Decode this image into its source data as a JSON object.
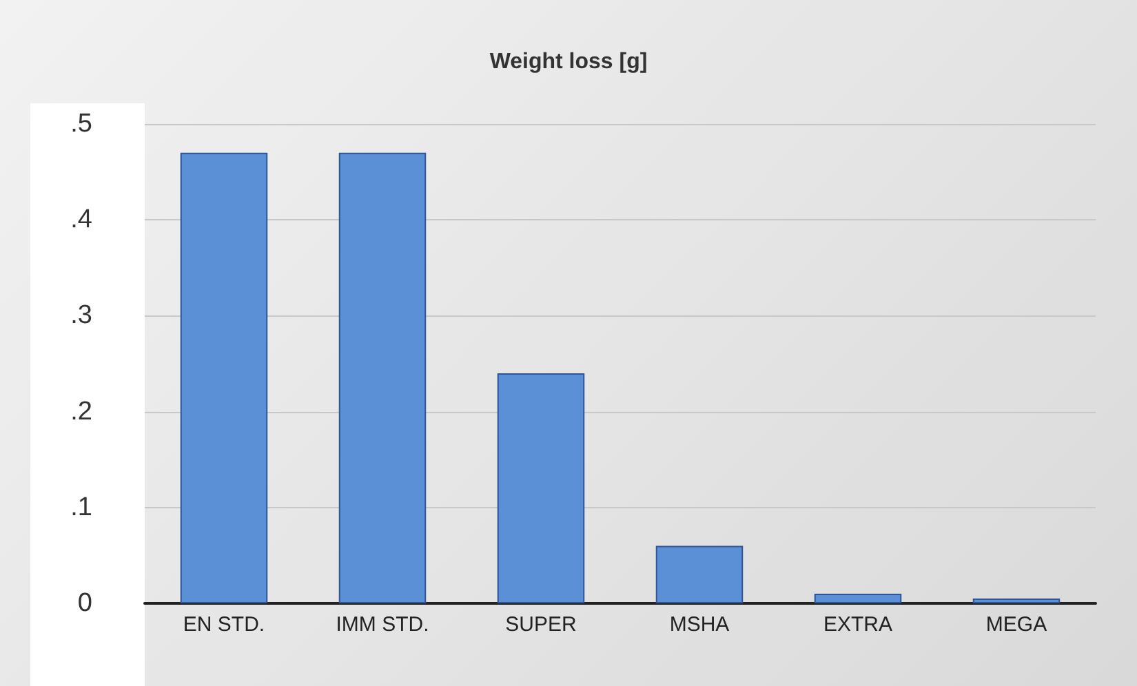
{
  "chart_data": {
    "type": "bar",
    "title": "Weight loss [g]",
    "categories": [
      "EN STD.",
      "IMM STD.",
      "SUPER",
      "MSHA",
      "EXTRA",
      "MEGA"
    ],
    "values": [
      0.47,
      0.47,
      0.24,
      0.06,
      0.01,
      0.005
    ],
    "color": "#5b8fd6",
    "ylim": [
      0,
      0.5
    ],
    "yticks": [
      0,
      {
        "value": 0.1,
        "label": ".1"
      },
      {
        "value": 0.2,
        "label": ".2"
      },
      {
        "value": 0.3,
        "label": ".3"
      },
      {
        "value": 0.4,
        "label": ".4"
      },
      {
        "value": 0.5,
        "label": ".5"
      }
    ],
    "grid": "y"
  }
}
